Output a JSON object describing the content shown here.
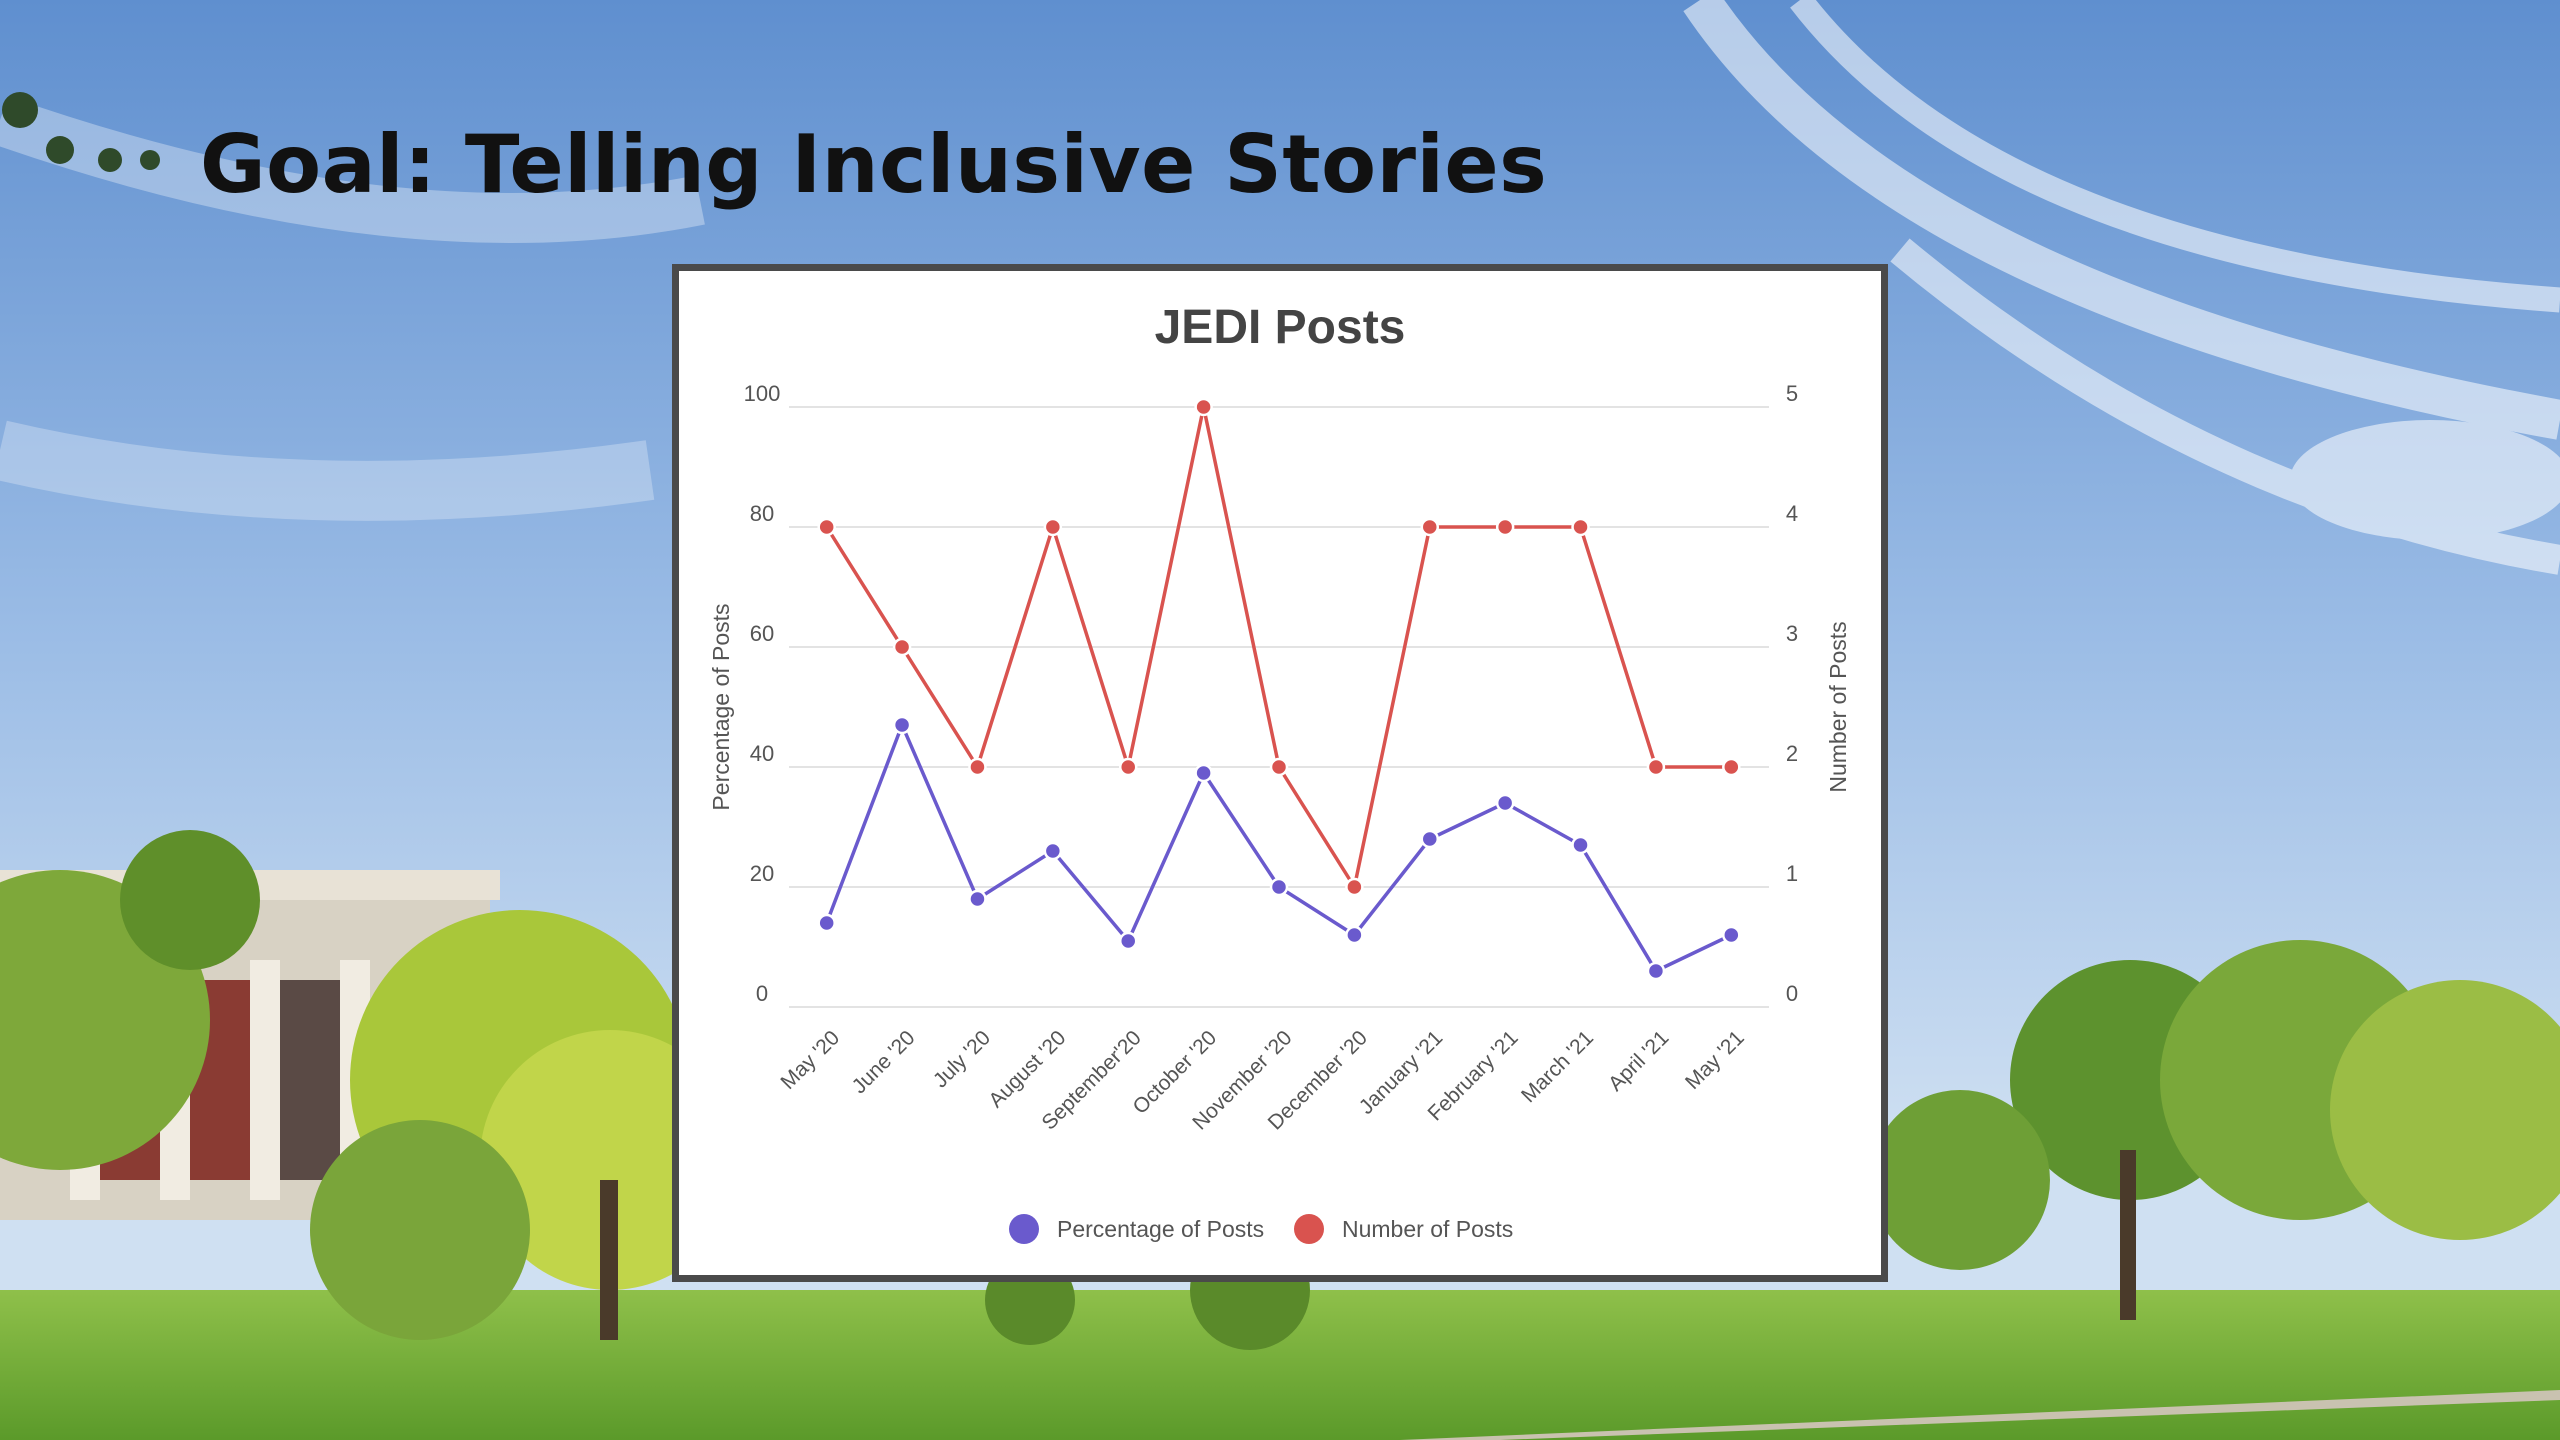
{
  "slide": {
    "title": "Goal: Telling Inclusive Stories"
  },
  "colors": {
    "percentage_series": "#6a5acd",
    "number_series": "#d9534f",
    "grid": "#e3e3e3",
    "text": "#555555"
  },
  "chart_data": {
    "type": "line",
    "title": "JEDI Posts",
    "categories": [
      "May '20",
      "June '20",
      "July '20",
      "August '20",
      "September'20",
      "October '20",
      "November '20",
      "December '20",
      "January '21",
      "February '21",
      "March '21",
      "April '21",
      "May '21"
    ],
    "ylabel": "Percentage of Posts",
    "ylim": [
      0,
      100
    ],
    "yticks": [
      "0",
      "20",
      "40",
      "60",
      "80",
      "100"
    ],
    "y2label": "Number of Posts",
    "y2lim": [
      0,
      5
    ],
    "y2ticks": [
      "0",
      "1",
      "2",
      "3",
      "4",
      "5"
    ],
    "grid": true,
    "legend_position": "bottom",
    "series": [
      {
        "name": "Percentage of Posts",
        "axis": "left",
        "values": [
          14,
          47,
          18,
          26,
          11,
          39,
          20,
          12,
          28,
          34,
          27,
          6,
          12
        ]
      },
      {
        "name": "Number of Posts",
        "axis": "right",
        "values": [
          4,
          3,
          2,
          4,
          2,
          5,
          2,
          1,
          4,
          4,
          4,
          2,
          2
        ]
      }
    ]
  }
}
